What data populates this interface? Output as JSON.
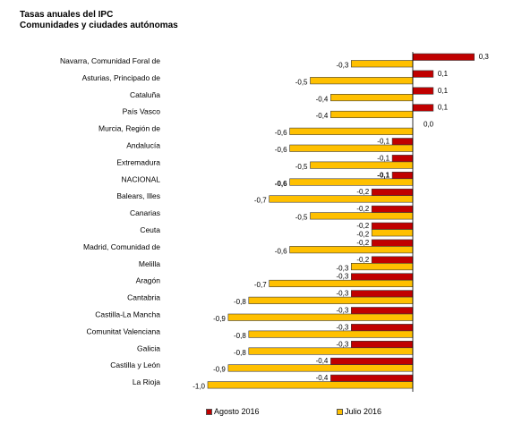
{
  "title": "Tasas anuales del IPC",
  "subtitle": "Comunidades y ciudades autónomas",
  "colors": {
    "agosto": "#c00000",
    "julio": "#ffc000",
    "border": "#3a3a3a"
  },
  "chart_data": {
    "type": "bar",
    "orientation": "horizontal",
    "title": "Tasas anuales del IPC",
    "subtitle": "Comunidades y ciudades autónomas",
    "categories": [
      "Navarra, Comunidad Foral de",
      "Asturias, Principado de",
      "Cataluña",
      "País Vasco",
      "Murcia, Región de",
      "Andalucía",
      "Extremadura",
      "NACIONAL",
      "Balears, Illes",
      "Canarias",
      "Ceuta",
      "Madrid, Comunidad de",
      "Melilla",
      "Aragón",
      "Cantabria",
      "Castilla-La Mancha",
      "Comunitat Valenciana",
      "Galicia",
      "Castilla y León",
      "La Rioja"
    ],
    "series": [
      {
        "name": "Agosto 2016",
        "values": [
          0.3,
          0.1,
          0.1,
          0.1,
          0.0,
          -0.1,
          -0.1,
          -0.1,
          -0.2,
          -0.2,
          -0.2,
          -0.2,
          -0.2,
          -0.3,
          -0.3,
          -0.3,
          -0.3,
          -0.3,
          -0.4,
          -0.4
        ],
        "labels": [
          "0,3",
          "0,1",
          "0,1",
          "0,1",
          "0,0",
          "-0,1",
          "-0,1",
          "-0,1",
          "-0,2",
          "-0,2",
          "-0,2",
          "-0,2",
          "-0,2",
          "-0,3",
          "-0,3",
          "-0,3",
          "-0,3",
          "-0,3",
          "-0,4",
          "-0,4"
        ]
      },
      {
        "name": "Julio 2016",
        "values": [
          -0.3,
          -0.5,
          -0.4,
          -0.4,
          -0.6,
          -0.6,
          -0.5,
          -0.6,
          -0.7,
          -0.5,
          -0.2,
          -0.6,
          -0.3,
          -0.7,
          -0.8,
          -0.9,
          -0.8,
          -0.8,
          -0.9,
          -1.0
        ],
        "labels": [
          "-0,3",
          "-0,5",
          "-0,4",
          "-0,4",
          "-0,6",
          "-0,6",
          "-0,5",
          "-0,6",
          "-0,7",
          "-0,5",
          "-0,2",
          "-0,6",
          "-0,3",
          "-0,7",
          "-0,8",
          "-0,9",
          "-0,8",
          "-0,8",
          "-0,9",
          "-1,0"
        ]
      }
    ],
    "xlim": [
      -1.0,
      0.3
    ],
    "legend_position": "bottom",
    "grid": false
  }
}
